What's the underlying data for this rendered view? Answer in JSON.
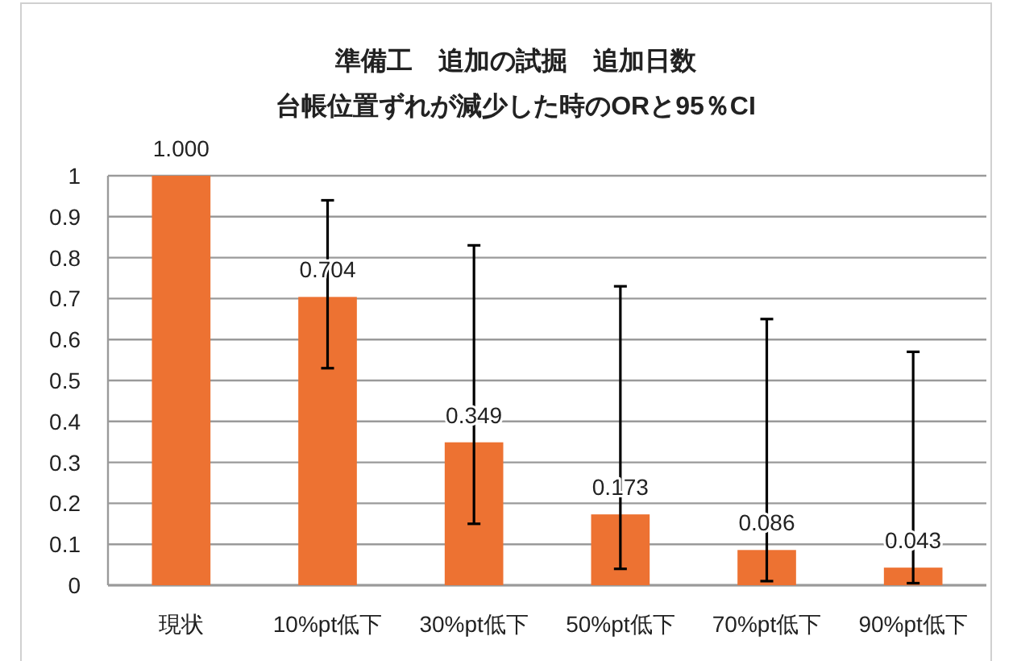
{
  "chart_data": {
    "type": "bar",
    "title": "準備工　追加の試掘　追加日数",
    "subtitle": "台帳位置ずれが減少した時のORと95％CI",
    "categories": [
      "現状",
      "10%pt低下",
      "30%pt低下",
      "50%pt低下",
      "70%pt低下",
      "90%pt低下"
    ],
    "values": [
      1.0,
      0.704,
      0.349,
      0.173,
      0.086,
      0.043
    ],
    "value_labels": [
      "1.000",
      "0.704",
      "0.349",
      "0.173",
      "0.086",
      "0.043"
    ],
    "errors": [
      null,
      [
        0.53,
        0.94
      ],
      [
        0.15,
        0.83
      ],
      [
        0.04,
        0.73
      ],
      [
        0.01,
        0.65
      ],
      [
        0.005,
        0.57
      ]
    ],
    "color": "#ed7232",
    "ylim": [
      0,
      1
    ],
    "yticks": [
      0,
      0.1,
      0.2,
      0.3,
      0.4,
      0.5,
      0.6,
      0.7,
      0.8,
      0.9,
      1
    ],
    "grid": "y"
  }
}
